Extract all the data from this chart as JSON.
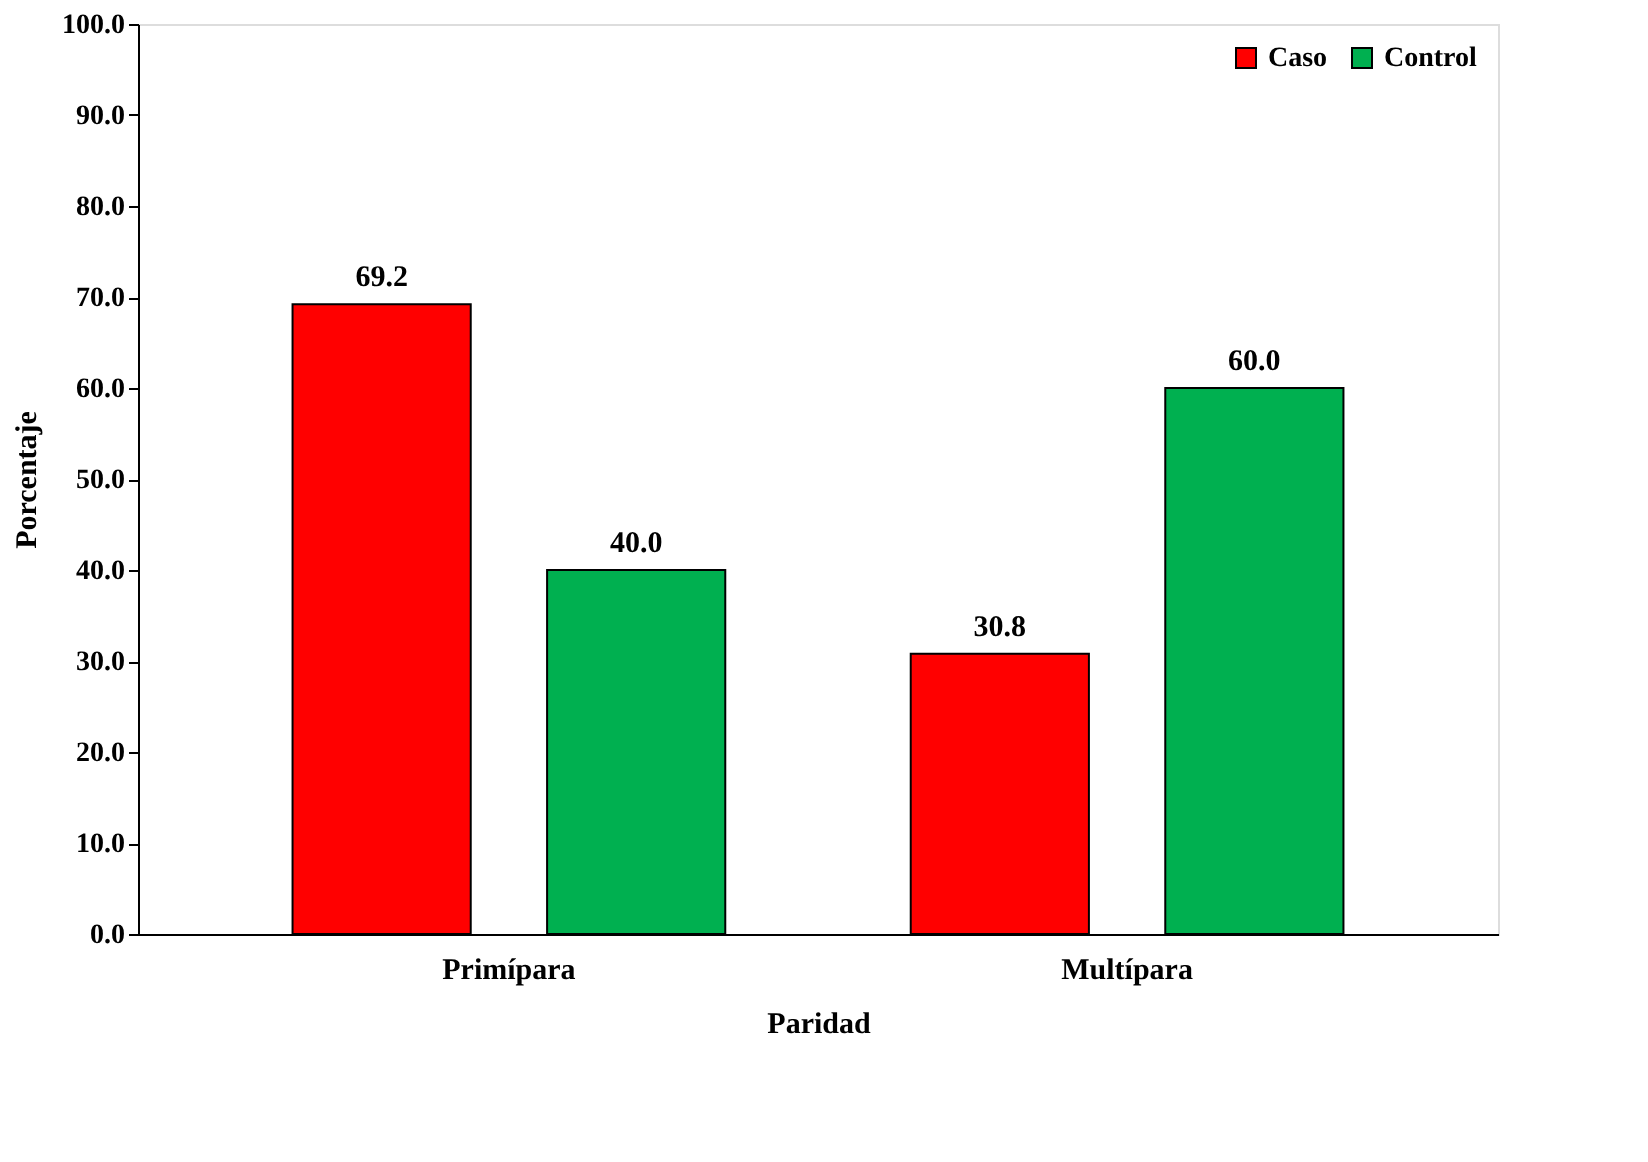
{
  "chart_data": {
    "type": "bar",
    "xlabel": "Paridad",
    "ylabel": "Porcentaje",
    "categories": [
      "Primípara",
      "Multípara"
    ],
    "series": [
      {
        "name": "Caso",
        "color": "#ff0000",
        "values": [
          69.2,
          30.8
        ],
        "value_labels": [
          "69.2",
          "30.8"
        ]
      },
      {
        "name": "Control",
        "color": "#00b050",
        "values": [
          40.0,
          60.0
        ],
        "value_labels": [
          "40.0",
          "60.0"
        ]
      }
    ],
    "ylim": [
      0,
      100
    ],
    "yticks": [
      {
        "value": 0,
        "label": "0.0"
      },
      {
        "value": 10,
        "label": "10.0"
      },
      {
        "value": 20,
        "label": "20.0"
      },
      {
        "value": 30,
        "label": "30.0"
      },
      {
        "value": 40,
        "label": "40.0"
      },
      {
        "value": 50,
        "label": "50.0"
      },
      {
        "value": 60,
        "label": "60.0"
      },
      {
        "value": 70,
        "label": "70.0"
      },
      {
        "value": 80,
        "label": "80.0"
      },
      {
        "value": 90,
        "label": "90.0"
      },
      {
        "value": 100,
        "label": "100.0"
      }
    ],
    "grid": false,
    "legend": "top right"
  }
}
